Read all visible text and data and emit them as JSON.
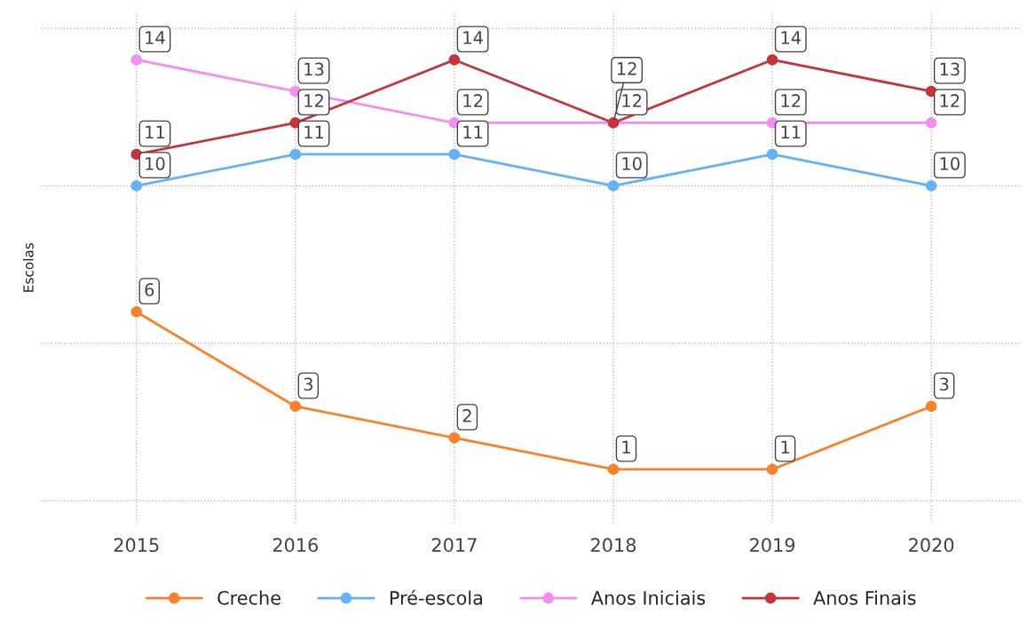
{
  "chart_data": {
    "type": "line",
    "ylabel": "Escolas",
    "x": [
      2015,
      2016,
      2017,
      2018,
      2019,
      2020
    ],
    "series": [
      {
        "name": "Creche",
        "color": "#f8812a",
        "values": [
          6,
          3,
          2,
          1,
          1,
          3
        ]
      },
      {
        "name": "Pré-escola",
        "color": "#64b1f6",
        "values": [
          10,
          11,
          11,
          10,
          11,
          10
        ]
      },
      {
        "name": "Anos Iniciais",
        "color": "#f48ef0",
        "values": [
          14,
          13,
          12,
          12,
          12,
          12
        ]
      },
      {
        "name": "Anos Finais",
        "color": "#c5343a",
        "values": [
          11,
          12,
          14,
          12,
          14,
          13
        ]
      }
    ],
    "xlim": [
      2014.4,
      2020.57
    ],
    "xticks": [
      2015,
      2016,
      2017,
      2018,
      2019,
      2020
    ],
    "ylim": [
      -0.7,
      15.5
    ],
    "yticks": [
      {
        "value": 0,
        "label": null
      },
      {
        "value": 5,
        "label": null
      },
      {
        "value": 10,
        "label": null
      },
      {
        "value": 15,
        "label": null
      }
    ],
    "tick_labels": "x",
    "grid": true,
    "legend": "bottom",
    "marker": "circle",
    "line_style": "solid",
    "data_labels": true
  }
}
